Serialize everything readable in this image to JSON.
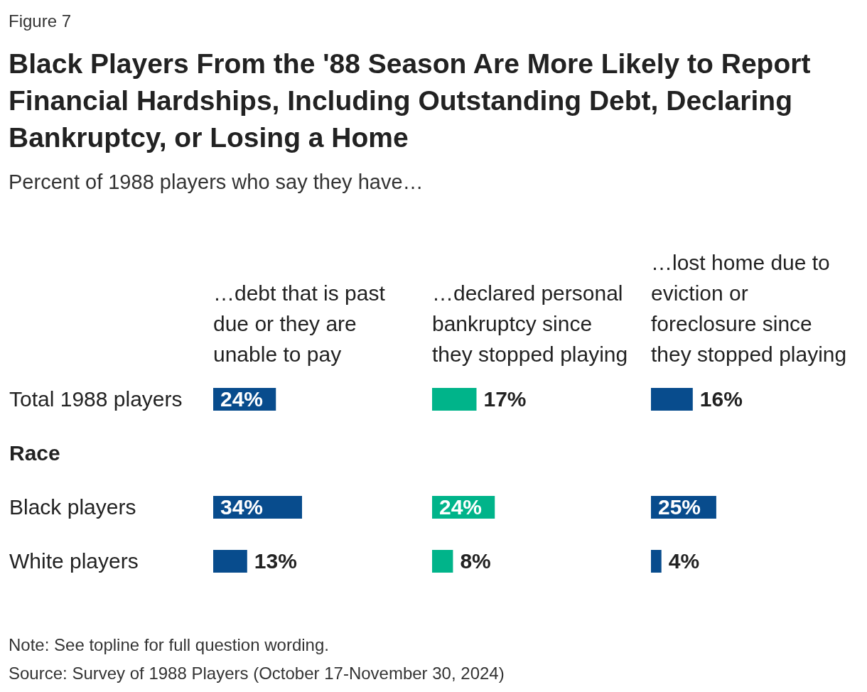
{
  "chart_data": [
    {
      "type": "other",
      "title": "Black Players From the '88 Season Are More Likely to Report Financial Hardships, Including Outstanding Debt, Declaring Bankruptcy, or Losing a Home",
      "subtitle": "Percent of 1988 players who say they have…",
      "annotations": [
        "Figure 7",
        "Note: See topline for full question wording.",
        "Source: Survey of 1988 Players (October 17-November 30, 2024)"
      ]
    },
    {
      "type": "bar",
      "orientation": "horizontal",
      "title": "…debt that is past due or they are unable to pay",
      "categories": [
        "Total 1988 players",
        "Race",
        "Black players",
        "White players"
      ],
      "values": [
        24,
        null,
        34,
        13
      ],
      "value_labels": [
        "24%",
        null,
        "34%",
        "13%"
      ],
      "color": "#084c8d",
      "tick_labels": "y"
    },
    {
      "type": "bar",
      "orientation": "horizontal",
      "title": "…declared personal bankruptcy since they stopped playing",
      "values": [
        17,
        null,
        24,
        8
      ],
      "value_labels": [
        "17%",
        null,
        "24%",
        "8%"
      ],
      "color": "#00b48a",
      "tick_labels": false
    },
    {
      "type": "bar",
      "orientation": "horizontal",
      "title": "…lost home due to eviction or foreclosure since they stopped playing",
      "values": [
        16,
        null,
        25,
        4
      ],
      "value_labels": [
        "16%",
        null,
        "25%",
        "4%"
      ],
      "color": "#084c8d",
      "tick_labels": false
    }
  ]
}
